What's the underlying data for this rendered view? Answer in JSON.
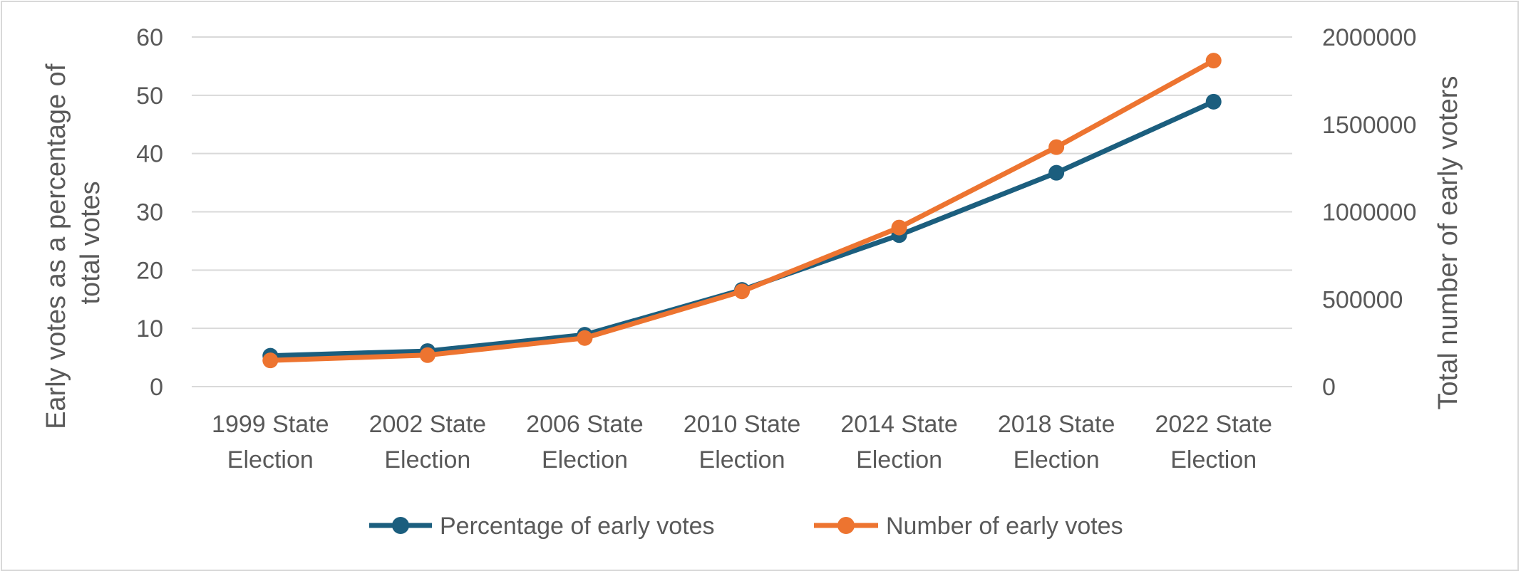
{
  "chart_data": {
    "type": "line",
    "categories": [
      [
        "1999 State",
        "Election"
      ],
      [
        "2002 State",
        "Election"
      ],
      [
        "2006 State",
        "Election"
      ],
      [
        "2010 State",
        "Election"
      ],
      [
        "2014 State",
        "Election"
      ],
      [
        "2018 State",
        "Election"
      ],
      [
        "2022 State",
        "Election"
      ]
    ],
    "left_axis": {
      "label_lines": [
        "Early votes as a percentage of",
        "total votes"
      ],
      "ylim": [
        0,
        60
      ],
      "ticks": [
        "0",
        "10",
        "20",
        "30",
        "40",
        "50",
        "60"
      ]
    },
    "right_axis": {
      "label": "Total number of early voters",
      "ylim": [
        0,
        2000000
      ],
      "ticks": [
        "0",
        "500000",
        "1000000",
        "1500000",
        "2000000"
      ]
    },
    "grid": true,
    "legend_position": "bottom",
    "series": [
      {
        "name": "Percentage of early votes",
        "axis": "left",
        "color": "#1b5e7e",
        "values": [
          5.3,
          6.1,
          8.9,
          16.6,
          26.0,
          36.7,
          48.9
        ]
      },
      {
        "name": "Number of early votes",
        "axis": "right",
        "color": "#ed7430",
        "values": [
          150000,
          180000,
          278000,
          545000,
          910000,
          1370000,
          1865000
        ]
      }
    ]
  }
}
